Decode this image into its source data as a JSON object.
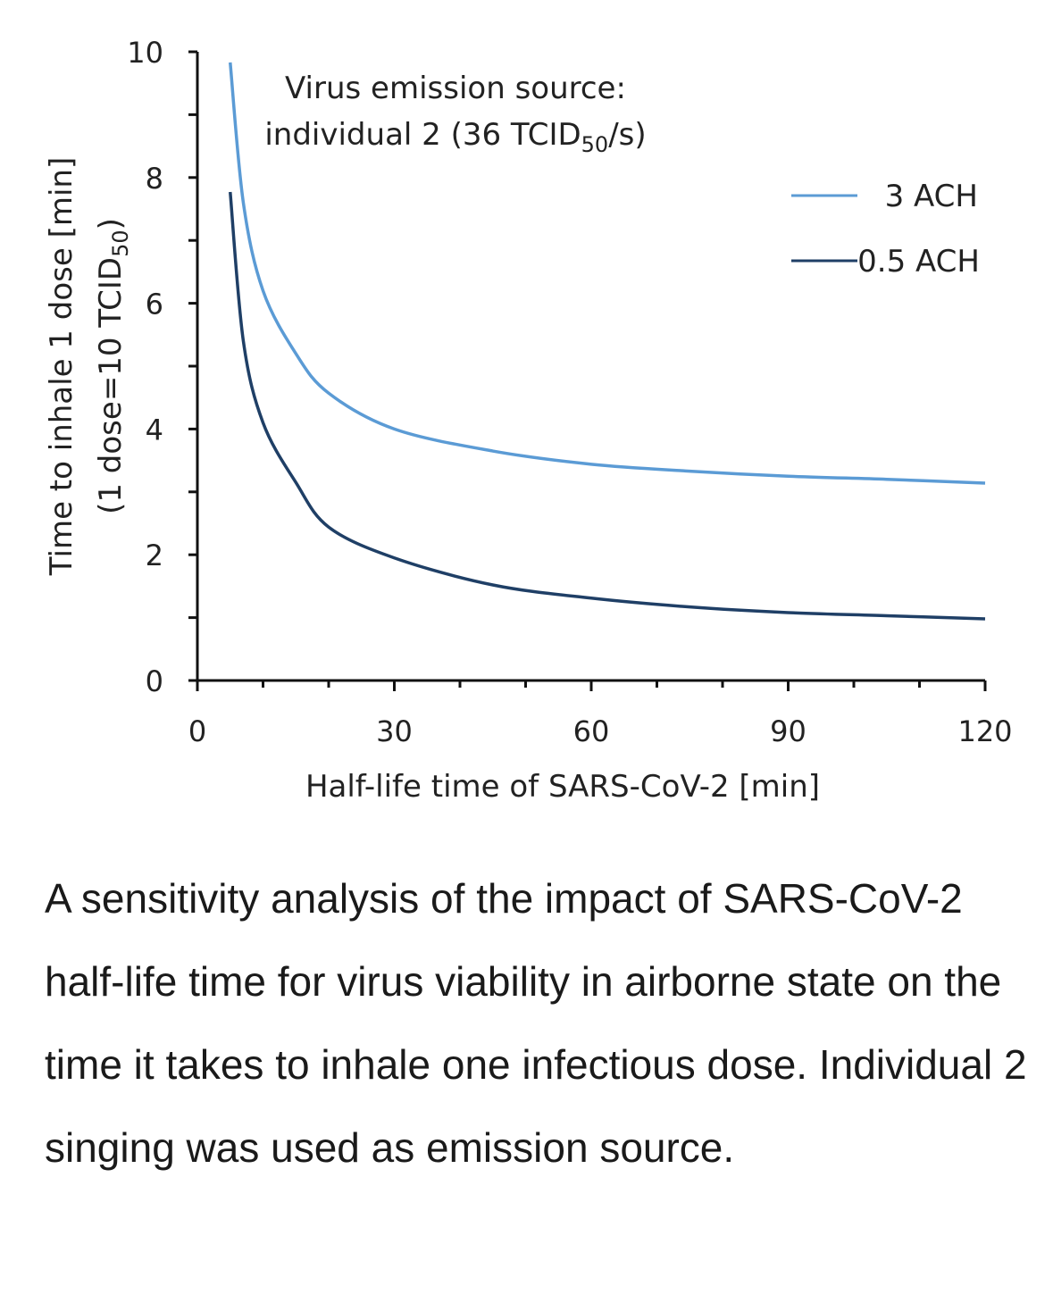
{
  "chart_data": {
    "type": "line",
    "annotation": {
      "line1": "Virus emission source:",
      "line2_prefix": "individual 2 (36 TCID",
      "line2_sub": "50",
      "line2_suffix": "/s)"
    },
    "xlabel": "Half-life time of SARS-CoV-2 [min]",
    "ylabel": "Time to inhale 1 dose [min]",
    "ylabel2_prefix": "(1 dose=10 TCID",
    "ylabel2_sub": "50",
    "ylabel2_suffix": ")",
    "xlim": [
      0,
      120
    ],
    "ylim": [
      0,
      10
    ],
    "xticks": [
      "0",
      "30",
      "60",
      "90",
      "120"
    ],
    "yticks": [
      "0",
      "2",
      "4",
      "6",
      "8",
      "10"
    ],
    "grid": false,
    "legend_position": "top-right",
    "series": [
      {
        "name": "3 ACH",
        "color": "#5b9bd5",
        "x": [
          5,
          7,
          10,
          15,
          20,
          30,
          45,
          60,
          75,
          90,
          105,
          120
        ],
        "y": [
          9.83,
          7.6,
          6.2,
          5.2,
          4.57,
          4.0,
          3.65,
          3.44,
          3.33,
          3.25,
          3.2,
          3.14
        ]
      },
      {
        "name": "0.5 ACH",
        "color": "#1f3f66",
        "x": [
          5,
          7,
          10,
          15,
          20,
          30,
          45,
          60,
          75,
          90,
          105,
          120
        ],
        "y": [
          7.77,
          5.4,
          4.1,
          3.15,
          2.44,
          1.95,
          1.52,
          1.31,
          1.17,
          1.08,
          1.03,
          0.98
        ]
      }
    ]
  },
  "caption": "A sensitivity analysis of the impact of SARS-CoV-2 half-life time for virus viability in airborne state on the time it takes to inhale one infectious dose. Individual 2 singing was used as emission source."
}
